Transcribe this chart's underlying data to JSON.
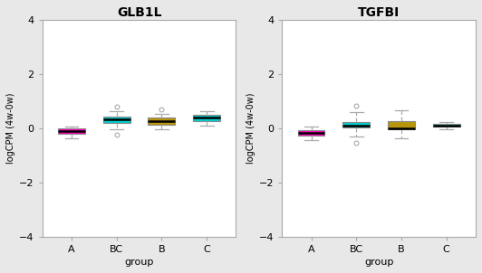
{
  "title_left": "GLB1L",
  "title_right": "TGFBI",
  "xlabel": "group",
  "ylabel": "logCPM (4w-0w)",
  "groups": [
    "A",
    "BC",
    "B",
    "C"
  ],
  "ylim": [
    -4,
    4
  ],
  "yticks": [
    -4,
    -2,
    0,
    2,
    4
  ],
  "colors": {
    "A": "#FF00BB",
    "BC": "#00CED1",
    "B": "#B8960C",
    "C": "#00CED1"
  },
  "GLB1L": {
    "A": {
      "q1": -0.2,
      "median": -0.1,
      "q3": 0.0,
      "whislo": -0.38,
      "whishi": 0.08,
      "fliers": []
    },
    "BC": {
      "q1": 0.2,
      "median": 0.32,
      "q3": 0.45,
      "whislo": -0.05,
      "whishi": 0.62,
      "fliers": [
        0.8,
        -0.22
      ]
    },
    "B": {
      "q1": 0.12,
      "median": 0.25,
      "q3": 0.4,
      "whislo": -0.02,
      "whishi": 0.55,
      "fliers": [
        0.7
      ]
    },
    "C": {
      "q1": 0.28,
      "median": 0.4,
      "q3": 0.5,
      "whislo": 0.1,
      "whishi": 0.62,
      "fliers": []
    }
  },
  "TGFBI": {
    "A": {
      "q1": -0.28,
      "median": -0.18,
      "q3": -0.08,
      "whislo": -0.45,
      "whishi": 0.05,
      "fliers": []
    },
    "BC": {
      "q1": 0.02,
      "median": 0.1,
      "q3": 0.22,
      "whislo": -0.3,
      "whishi": 0.6,
      "fliers": [
        0.85,
        -0.55
      ]
    },
    "B": {
      "q1": -0.05,
      "median": 0.0,
      "q3": 0.25,
      "whislo": -0.38,
      "whishi": 0.68,
      "fliers": []
    },
    "C": {
      "q1": 0.05,
      "median": 0.1,
      "q3": 0.15,
      "whislo": -0.05,
      "whishi": 0.22,
      "fliers": []
    }
  },
  "fig_bg": "#e8e8e8",
  "ax_bg": "#ffffff",
  "median_color": "black",
  "whisker_color": "#aaaaaa",
  "flier_color": "#aaaaaa",
  "box_edge_color": "#888888",
  "spine_color": "#aaaaaa"
}
